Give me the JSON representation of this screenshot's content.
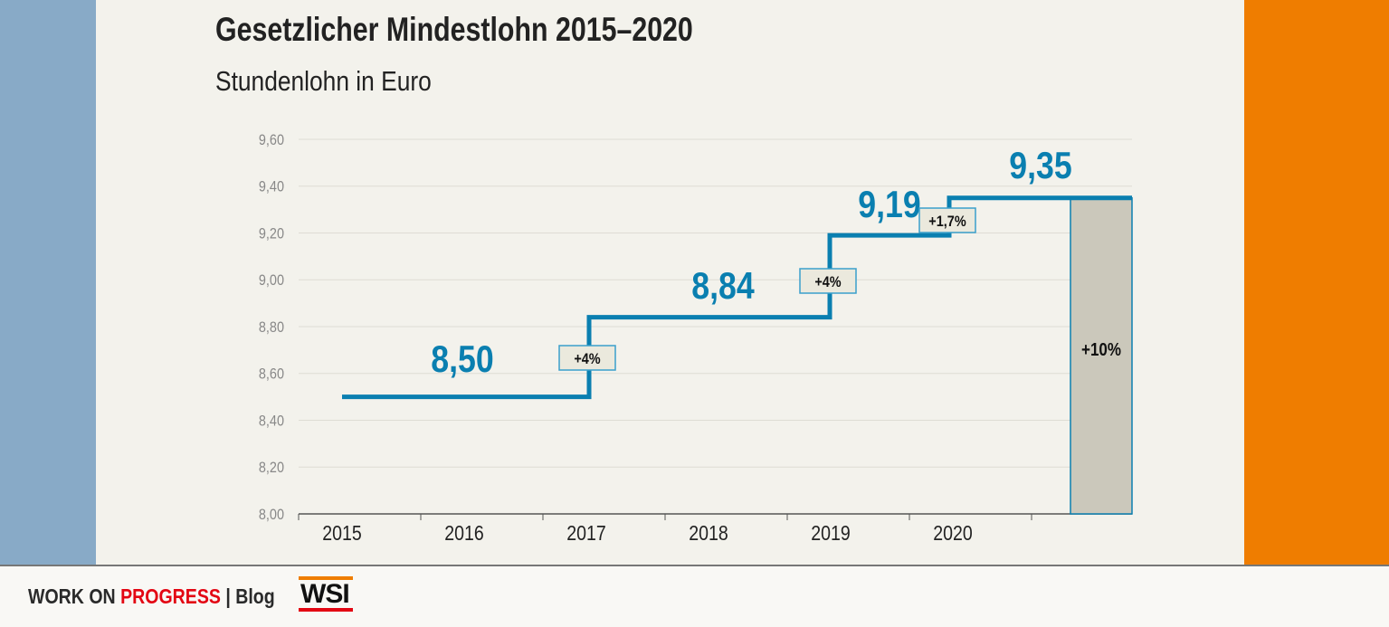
{
  "header": {
    "title": "Gesetzlicher Mindestlohn 2015–2020",
    "subtitle": "Stundenlohn in Euro"
  },
  "footer": {
    "brand_a": "WORK ON ",
    "brand_b": "PROGRESS",
    "sep": " | ",
    "blog": "Blog",
    "logo": "WSI"
  },
  "colors": {
    "line": "#0a7fb0",
    "bar": "#cbc8bb",
    "left_band": "#88aac7",
    "right_band": "#ef7d00"
  },
  "chart_data": {
    "type": "line",
    "title": "Gesetzlicher Mindestlohn 2015–2020",
    "ylabel": "Stundenlohn in Euro",
    "ylim": [
      8.0,
      9.6
    ],
    "yticks": [
      "8,00",
      "8,20",
      "8,40",
      "8,60",
      "8,80",
      "9,00",
      "9,20",
      "9,40",
      "9,60"
    ],
    "categories": [
      "2015",
      "2016",
      "2017",
      "2018",
      "2019",
      "2020"
    ],
    "steps": [
      {
        "from": 2015,
        "to": 2017,
        "value": 8.5,
        "label": "8,50"
      },
      {
        "from": 2017,
        "to": 2019,
        "value": 8.84,
        "label": "8,84",
        "change": "+4%"
      },
      {
        "from": 2019,
        "to": 2020,
        "value": 9.19,
        "label": "9,19",
        "change": "+4%"
      },
      {
        "from": 2020,
        "to": 2021.5,
        "value": 9.35,
        "label": "9,35",
        "change": "+1,7%"
      }
    ],
    "total_bar": {
      "value": 9.35,
      "label": "+10%"
    },
    "grid": true
  }
}
